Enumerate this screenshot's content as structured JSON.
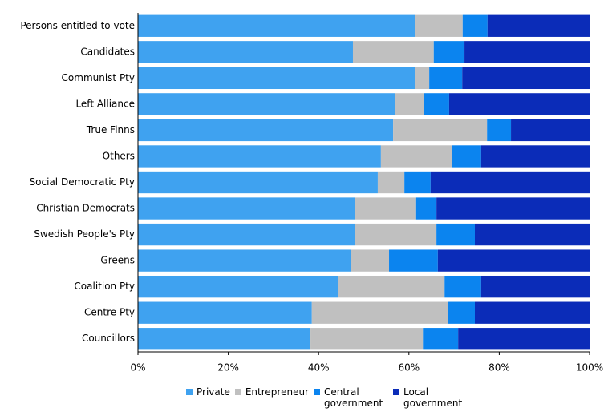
{
  "chart_data": {
    "type": "stacked-barh",
    "categories": [
      "Persons entitled to vote",
      "Candidates",
      "Communist Pty",
      "Left Alliance",
      "True Finns",
      "Others",
      "Social Democratic Pty",
      "Christian Democrats",
      "Swedish People's Pty",
      "Greens",
      "Coalition Pty",
      "Centre Pty",
      "Councillors"
    ],
    "series": [
      {
        "name": "Private",
        "color": "#3fa2f0",
        "values": [
          61.3,
          47.6,
          61.3,
          57.0,
          56.5,
          53.8,
          53.1,
          48.1,
          48.0,
          47.1,
          44.4,
          38.5,
          38.2
        ]
      },
      {
        "name": "Entrepreneur",
        "color": "#c0c0c0",
        "values": [
          10.6,
          17.9,
          3.2,
          6.4,
          20.8,
          15.8,
          5.9,
          13.5,
          18.1,
          8.5,
          23.5,
          30.1,
          24.9
        ]
      },
      {
        "name": "Central government",
        "color": "#0b84ef",
        "values": [
          5.5,
          6.8,
          7.3,
          5.5,
          5.3,
          6.4,
          5.8,
          4.5,
          8.5,
          10.8,
          8.1,
          6.0,
          7.8
        ]
      },
      {
        "name": "Local government",
        "color": "#0b2cb8",
        "values": [
          22.6,
          27.7,
          28.2,
          31.1,
          17.4,
          24.0,
          35.2,
          33.9,
          25.4,
          33.6,
          24.0,
          25.4,
          29.1
        ]
      }
    ],
    "xlim": [
      0,
      100
    ],
    "xticks": [
      {
        "value": 0,
        "label": "0%"
      },
      {
        "value": 20,
        "label": "20%"
      },
      {
        "value": 40,
        "label": "40%"
      },
      {
        "value": 60,
        "label": "60%"
      },
      {
        "value": 80,
        "label": "80%"
      },
      {
        "value": 100,
        "label": "100%"
      }
    ]
  }
}
